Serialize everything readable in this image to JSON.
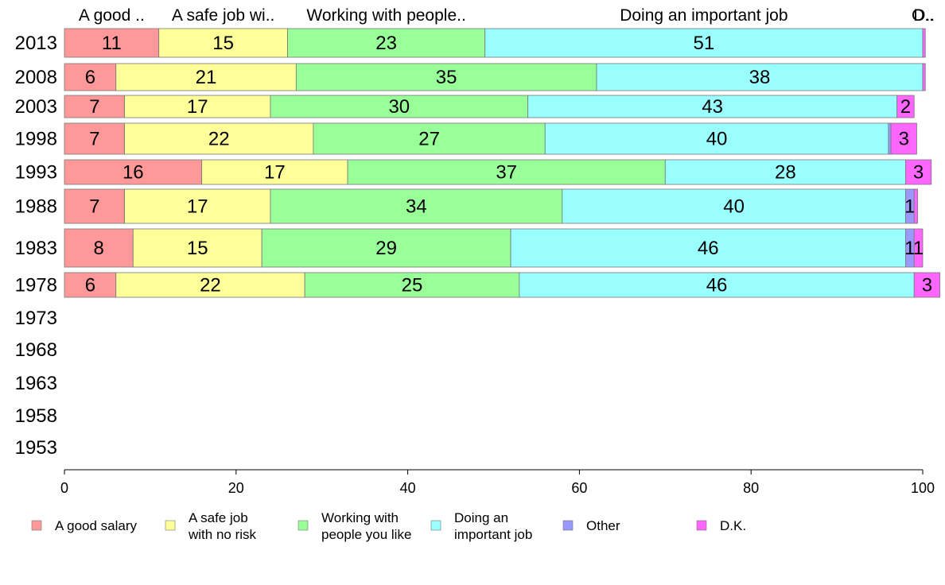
{
  "chart_data": {
    "type": "bar",
    "orientation": "horizontal",
    "stacked": true,
    "categories": [
      "2013",
      "2008",
      "2003",
      "1998",
      "1993",
      "1988",
      "1983",
      "1978",
      "1973",
      "1968",
      "1963",
      "1958",
      "1953"
    ],
    "series": [
      {
        "name": "A good salary",
        "color": "#ff9999",
        "values": [
          11,
          6,
          7,
          7,
          16,
          7,
          8,
          6,
          null,
          null,
          null,
          null,
          null
        ]
      },
      {
        "name": "A safe job with no risk",
        "color": "#ffff99",
        "values": [
          15,
          21,
          17,
          22,
          17,
          17,
          15,
          22,
          null,
          null,
          null,
          null,
          null
        ]
      },
      {
        "name": "Working with people you like",
        "color": "#99ff99",
        "values": [
          23,
          35,
          30,
          27,
          37,
          34,
          29,
          25,
          null,
          null,
          null,
          null,
          null
        ]
      },
      {
        "name": "Doing an important job",
        "color": "#99ffff",
        "values": [
          51,
          38,
          43,
          40,
          28,
          40,
          46,
          46,
          null,
          null,
          null,
          null,
          null
        ]
      },
      {
        "name": "Other",
        "color": "#9999ff",
        "values": [
          0,
          0,
          0,
          0.3,
          0,
          1,
          1,
          0,
          null,
          null,
          null,
          null,
          null
        ]
      },
      {
        "name": "D.K.",
        "color": "#ff66ff",
        "values": [
          0.3,
          0.3,
          2,
          3,
          3,
          0.4,
          1,
          3,
          null,
          null,
          null,
          null,
          null
        ]
      }
    ],
    "column_headers": [
      "A good ..",
      "A safe job wi..",
      "Working with people..",
      "Doing an important job",
      "O..",
      "D.."
    ],
    "legend": [
      {
        "lines": [
          "A good salary"
        ],
        "color": "#ff9999"
      },
      {
        "lines": [
          "A safe job",
          "with no risk"
        ],
        "color": "#ffff99"
      },
      {
        "lines": [
          "Working with",
          "people you like"
        ],
        "color": "#99ff99"
      },
      {
        "lines": [
          "Doing an",
          "important job"
        ],
        "color": "#99ffff"
      },
      {
        "lines": [
          "Other"
        ],
        "color": "#9999ff"
      },
      {
        "lines": [
          "D.K."
        ],
        "color": "#ff66ff"
      }
    ],
    "xlim": [
      0,
      100
    ],
    "xticks": [
      "0",
      "20",
      "40",
      "60",
      "80",
      "100"
    ],
    "legend_position": "bottom",
    "grid": false
  }
}
